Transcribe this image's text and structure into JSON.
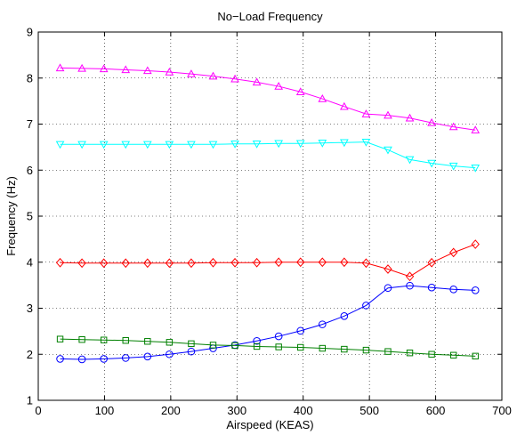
{
  "chart_data": {
    "type": "line",
    "title": "No−Load Frequency",
    "xlabel": "Airspeed (KEAS)",
    "ylabel": "Frequency (Hz)",
    "xlim": [
      0,
      700
    ],
    "ylim": [
      1,
      9
    ],
    "xticks": [
      0,
      100,
      200,
      300,
      400,
      500,
      600,
      700
    ],
    "yticks": [
      1,
      2,
      3,
      4,
      5,
      6,
      7,
      8,
      9
    ],
    "grid": true,
    "x": [
      33,
      66,
      99,
      132,
      165,
      198,
      231,
      264,
      297,
      330,
      363,
      396,
      429,
      462,
      495,
      528,
      561,
      594,
      627,
      660
    ],
    "series": [
      {
        "marker": "triangle-up",
        "color": "#ff00ff",
        "values": [
          8.22,
          8.21,
          8.2,
          8.18,
          8.16,
          8.13,
          8.09,
          8.04,
          7.98,
          7.91,
          7.82,
          7.7,
          7.55,
          7.38,
          7.22,
          7.19,
          7.13,
          7.03,
          6.94,
          6.87
        ]
      },
      {
        "marker": "triangle-down",
        "color": "#00ffff",
        "values": [
          6.56,
          6.56,
          6.56,
          6.56,
          6.56,
          6.56,
          6.56,
          6.56,
          6.57,
          6.57,
          6.58,
          6.58,
          6.59,
          6.6,
          6.61,
          6.44,
          6.23,
          6.15,
          6.09,
          6.05
        ]
      },
      {
        "marker": "diamond",
        "color": "#ff0000",
        "values": [
          3.99,
          3.98,
          3.98,
          3.98,
          3.98,
          3.98,
          3.98,
          3.99,
          3.99,
          3.99,
          4.0,
          4.0,
          4.0,
          4.0,
          3.98,
          3.85,
          3.69,
          3.99,
          4.21,
          4.39
        ]
      },
      {
        "marker": "circle",
        "color": "#0000ff",
        "values": [
          1.9,
          1.89,
          1.9,
          1.92,
          1.95,
          2.0,
          2.06,
          2.13,
          2.2,
          2.29,
          2.39,
          2.51,
          2.65,
          2.83,
          3.06,
          3.44,
          3.49,
          3.45,
          3.41,
          3.39
        ]
      },
      {
        "marker": "square",
        "color": "#008000",
        "values": [
          2.33,
          2.32,
          2.31,
          2.3,
          2.28,
          2.26,
          2.23,
          2.2,
          2.19,
          2.17,
          2.16,
          2.15,
          2.13,
          2.11,
          2.09,
          2.06,
          2.03,
          2.0,
          1.98,
          1.96
        ]
      }
    ]
  }
}
